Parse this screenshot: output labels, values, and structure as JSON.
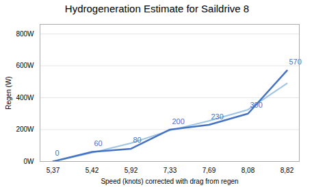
{
  "chart_data": {
    "type": "line",
    "title": "Hydrogeneration Estimate for Saildrive 8",
    "xlabel": "Speed (knots) corrected with drag from regen",
    "ylabel": "Regen (W)",
    "categories": [
      "5,37",
      "5,42",
      "5,92",
      "7,33",
      "7,69",
      "8,08",
      "8,82"
    ],
    "series": [
      {
        "color": "#9DC3E6",
        "values": [
          0,
          55,
          115,
          195,
          255,
          325,
          490
        ]
      },
      {
        "color": "#4472C4",
        "values": [
          0,
          60,
          80,
          200,
          230,
          300,
          570
        ],
        "data_labels": true
      }
    ],
    "ylim": [
      0,
      860
    ],
    "yticks": [
      {
        "value": 0,
        "label": "0W"
      },
      {
        "value": 200,
        "label": "200W"
      },
      {
        "value": 400,
        "label": "400W"
      },
      {
        "value": 600,
        "label": "600W"
      },
      {
        "value": 800,
        "label": "800W"
      }
    ],
    "grid": true
  }
}
